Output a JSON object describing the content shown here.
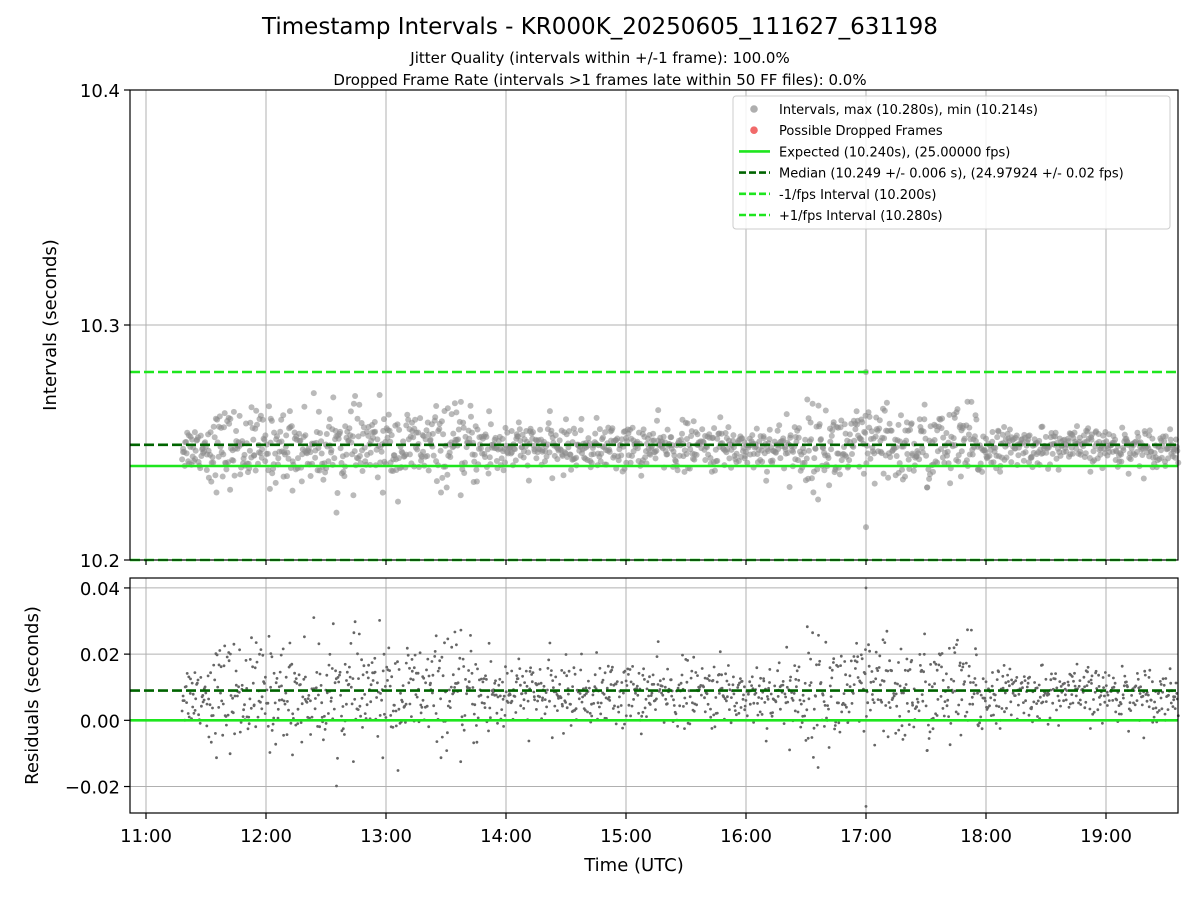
{
  "header": {
    "title": "Timestamp Intervals - KR000K_20250605_111627_631198",
    "subtitle_1": "Jitter Quality (intervals within +/-1 frame): 100.0%",
    "subtitle_2": "Dropped Frame Rate (intervals >1 frames late within 50 FF files): 0.0%"
  },
  "chart_data": [
    {
      "type": "scatter",
      "panel": "top",
      "ylabel": "Intervals (seconds)",
      "ylim": [
        10.2,
        10.4
      ],
      "y_ticks": [
        "10.2",
        "10.3",
        "10.4"
      ],
      "grid": true,
      "legend_position": "top-right",
      "legend": [
        {
          "label": "Intervals, max (10.280s), min (10.214s)",
          "marker": "dot",
          "color": "#8c8c8c"
        },
        {
          "label": "Possible Dropped Frames",
          "marker": "dot",
          "color": "#f05a5a"
        },
        {
          "label": "Expected (10.240s), (25.00000 fps)",
          "marker": "solid",
          "color": "#1ee61e"
        },
        {
          "label": "Median (10.249 +/- 0.006 s), (24.97924 +/- 0.02 fps)",
          "marker": "dashed",
          "color": "#006400"
        },
        {
          "label": "-1/fps Interval (10.200s)",
          "marker": "dashed",
          "color": "#1ee61e"
        },
        {
          "label": "+1/fps Interval (10.280s)",
          "marker": "dashed",
          "color": "#1ee61e"
        }
      ],
      "reference_lines": [
        {
          "name": "expected",
          "y": 10.24,
          "style": "solid",
          "color": "#1ee61e"
        },
        {
          "name": "median",
          "y": 10.249,
          "style": "dashed",
          "color": "#006400"
        },
        {
          "name": "minus_one_frame",
          "y": 10.2,
          "style": "dashed",
          "color": "#1ee61e"
        },
        {
          "name": "plus_one_frame",
          "y": 10.28,
          "style": "dashed",
          "color": "#1ee61e"
        }
      ],
      "series": [
        {
          "name": "Intervals, max (10.280s), min (10.214s)",
          "color": "#8c8c8c",
          "summary": {
            "t_start": "11:18",
            "t_end": "19:36",
            "center": 10.248,
            "max": 10.28,
            "min": 10.214
          }
        }
      ]
    },
    {
      "type": "scatter",
      "panel": "bottom",
      "xlabel": "Time (UTC)",
      "ylabel": "Residuals (seconds)",
      "ylim": [
        -0.028,
        0.043
      ],
      "y_ticks": [
        "−0.02",
        "0.00",
        "0.02",
        "0.04"
      ],
      "x_ticks": [
        "11:00",
        "12:00",
        "13:00",
        "14:00",
        "15:00",
        "16:00",
        "17:00",
        "18:00",
        "19:00"
      ],
      "xlim": [
        "10:52",
        "19:36"
      ],
      "grid": true,
      "reference_lines": [
        {
          "name": "zero",
          "y": 0.0,
          "style": "solid",
          "color": "#1ee61e"
        },
        {
          "name": "median_residual",
          "y": 0.009,
          "style": "dashed",
          "color": "#006400"
        }
      ],
      "series": [
        {
          "name": "Residuals",
          "color": "#666666",
          "summary": {
            "t_start": "11:18",
            "t_end": "19:36",
            "center": 0.008,
            "max": 0.04,
            "min": -0.026
          }
        }
      ]
    }
  ]
}
